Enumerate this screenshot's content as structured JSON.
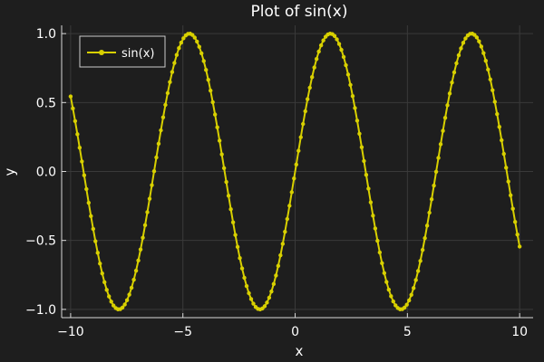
{
  "chart_data": {
    "type": "line",
    "title": "Plot of sin(x)",
    "xlabel": "x",
    "ylabel": "y",
    "xlim": [
      -10.4,
      10.6
    ],
    "ylim": [
      -1.06,
      1.06
    ],
    "xticks": [
      -10,
      -5,
      0,
      5,
      10
    ],
    "xtick_labels": [
      "−10",
      "−5",
      "0",
      "5",
      "10"
    ],
    "yticks": [
      -1.0,
      -0.5,
      0.0,
      0.5,
      1.0
    ],
    "ytick_labels": [
      "−1.0",
      "−0.5",
      "0.0",
      "0.5",
      "1.0"
    ],
    "grid": true,
    "legend_position": "top-left",
    "series": [
      {
        "name": "sin(x)",
        "color": "#d8d000",
        "marker": "circle",
        "function": "sin",
        "x_start": -10,
        "x_end": 10,
        "num_points": 200
      }
    ]
  }
}
